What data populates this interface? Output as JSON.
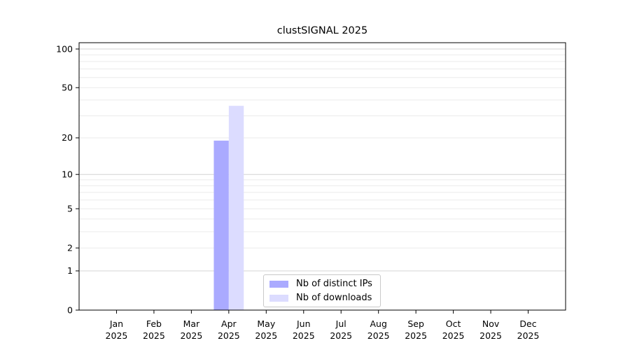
{
  "chart_data": {
    "type": "bar",
    "title": "clustSIGNAL 2025",
    "x_categories": [
      {
        "month": "Jan",
        "year": "2025"
      },
      {
        "month": "Feb",
        "year": "2025"
      },
      {
        "month": "Mar",
        "year": "2025"
      },
      {
        "month": "Apr",
        "year": "2025"
      },
      {
        "month": "May",
        "year": "2025"
      },
      {
        "month": "Jun",
        "year": "2025"
      },
      {
        "month": "Jul",
        "year": "2025"
      },
      {
        "month": "Aug",
        "year": "2025"
      },
      {
        "month": "Sep",
        "year": "2025"
      },
      {
        "month": "Oct",
        "year": "2025"
      },
      {
        "month": "Nov",
        "year": "2025"
      },
      {
        "month": "Dec",
        "year": "2025"
      }
    ],
    "series": [
      {
        "name": "Nb of distinct IPs",
        "color": "#aaaaff",
        "values": [
          0,
          0,
          0,
          19,
          0,
          0,
          0,
          0,
          0,
          0,
          0,
          0
        ]
      },
      {
        "name": "Nb of downloads",
        "color": "#dcdcff",
        "values": [
          0,
          0,
          0,
          36,
          0,
          0,
          0,
          0,
          0,
          0,
          0,
          0
        ]
      }
    ],
    "y_scale": "log10(value+1)",
    "ylim": [
      0,
      113
    ],
    "y_tick_values": [
      0,
      1,
      2,
      5,
      10,
      20,
      50,
      100
    ],
    "y_tick_labels": [
      "0",
      "1",
      "2",
      "5",
      "10",
      "20",
      "50",
      "100"
    ],
    "y_major_gridlines": [
      1,
      10,
      100
    ],
    "y_minor_gridlines": [
      2,
      3,
      4,
      5,
      6,
      7,
      8,
      9,
      20,
      30,
      40,
      50,
      60,
      70,
      80,
      90
    ],
    "grid": "horizontal",
    "legend_position": "bottom-center",
    "xlabel": "",
    "ylabel": ""
  },
  "colors": {
    "frame": "#000000",
    "major_gridline": "#d4d4d4",
    "minor_gridline": "#ebebeb",
    "tick": "#000000",
    "legend_border": "#c9c9c9",
    "background": "#ffffff"
  }
}
